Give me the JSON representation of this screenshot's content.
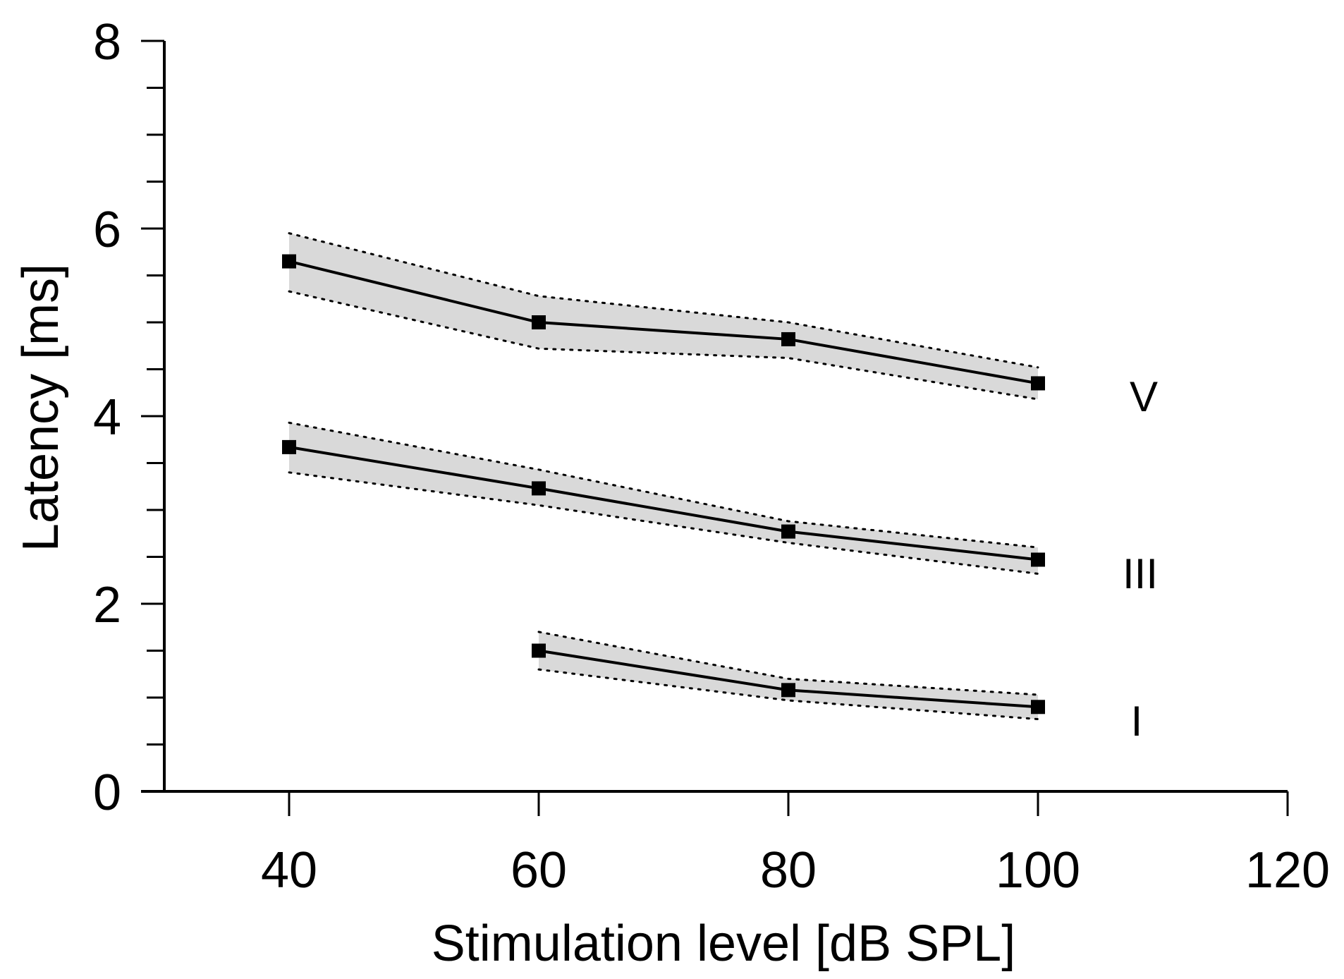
{
  "chart_data": {
    "type": "line",
    "title": "",
    "xlabel": "Stimulation level [dB SPL]",
    "ylabel": "Latency [ms]",
    "xlim": [
      30,
      120
    ],
    "ylim": [
      0,
      8
    ],
    "xticks": [
      40,
      60,
      80,
      100,
      120
    ],
    "yticks": [
      0,
      2,
      4,
      6,
      8
    ],
    "y_minor_step": 0.5,
    "grid": false,
    "series": [
      {
        "name": "V",
        "x": [
          40,
          60,
          80,
          100
        ],
        "values": [
          5.65,
          5.0,
          4.82,
          4.35
        ],
        "upper": [
          5.95,
          5.28,
          5.0,
          4.52
        ],
        "lower": [
          5.33,
          4.72,
          4.62,
          4.18
        ]
      },
      {
        "name": "III",
        "x": [
          40,
          60,
          80,
          100
        ],
        "values": [
          3.67,
          3.23,
          2.77,
          2.47
        ],
        "upper": [
          3.93,
          3.43,
          2.88,
          2.6
        ],
        "lower": [
          3.4,
          3.05,
          2.65,
          2.32
        ]
      },
      {
        "name": "I",
        "x": [
          60,
          80,
          100
        ],
        "values": [
          1.5,
          1.08,
          0.9
        ],
        "upper": [
          1.7,
          1.2,
          1.03
        ],
        "lower": [
          1.3,
          0.97,
          0.77
        ]
      }
    ],
    "colors": {
      "band": "#d9d9d9",
      "line": "#000000"
    }
  }
}
